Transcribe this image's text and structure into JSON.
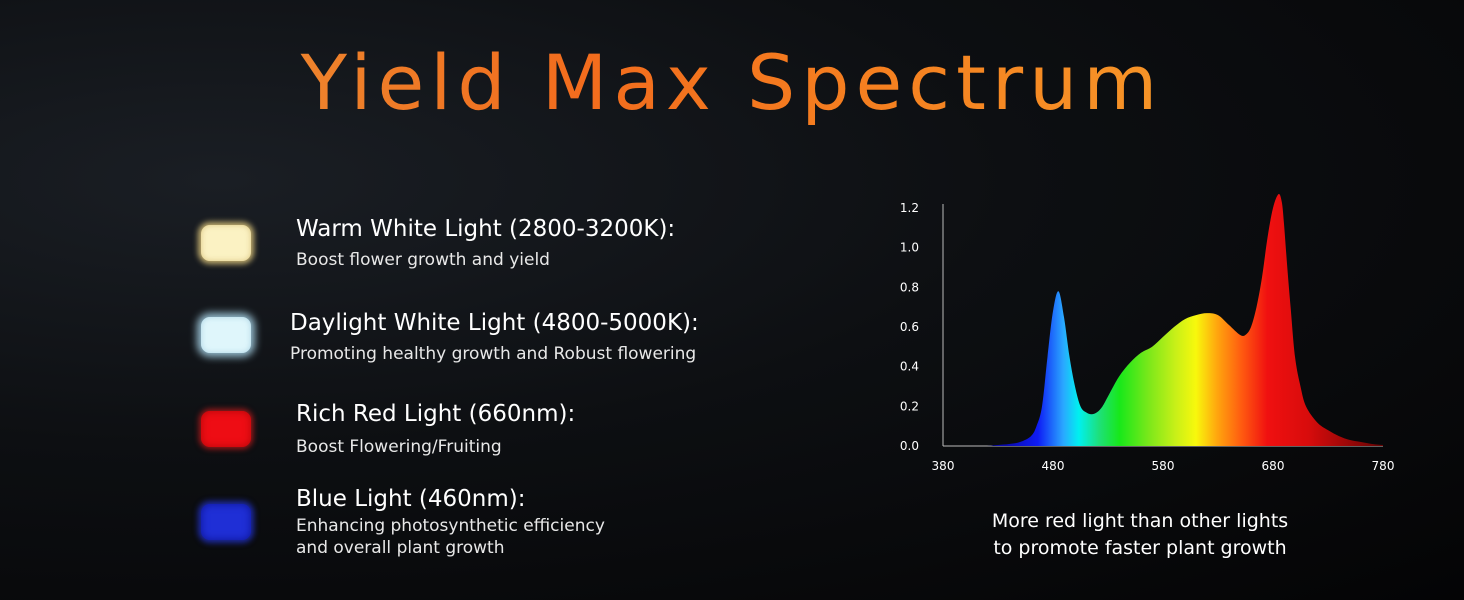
{
  "title": "Yield Max Spectrum",
  "legend": [
    {
      "key": "warm",
      "title": "Warm White Light (2800-3200K):",
      "desc": [
        "Boost flower growth and yield"
      ],
      "color": "#fbf2c3"
    },
    {
      "key": "day",
      "title": "Daylight White Light (4800-5000K):",
      "desc": [
        "Promoting healthy growth and Robust flowering"
      ],
      "color": "#dff6fb"
    },
    {
      "key": "red",
      "title": "Rich Red Light (660nm):",
      "desc": [
        "Boost Flowering/Fruiting"
      ],
      "color": "#ee0d14"
    },
    {
      "key": "blue",
      "title": "Blue Light (460nm):",
      "desc": [
        "Enhancing photosynthetic efficiency",
        "and overall plant growth"
      ],
      "color": "#1f2fd6"
    }
  ],
  "caption": [
    "More red light than other lights",
    "to promote faster plant growth"
  ],
  "chart_data": {
    "type": "area",
    "xlim": [
      380,
      780
    ],
    "ylim": [
      0,
      1.2
    ],
    "x_ticks": [
      "380",
      "480",
      "580",
      "680",
      "780"
    ],
    "y_ticks": [
      "0.0",
      "0.2",
      "0.4",
      "0.6",
      "0.8",
      "1.0",
      "1.2"
    ],
    "grid": false,
    "x": [
      380,
      400,
      420,
      430,
      440,
      450,
      460,
      465,
      470,
      475,
      480,
      485,
      490,
      495,
      500,
      505,
      510,
      515,
      520,
      525,
      530,
      540,
      550,
      560,
      570,
      580,
      590,
      600,
      610,
      620,
      630,
      640,
      650,
      655,
      660,
      665,
      670,
      675,
      680,
      685,
      688,
      690,
      693,
      696,
      700,
      705,
      710,
      720,
      730,
      740,
      750,
      760,
      770,
      780
    ],
    "y": [
      0.0,
      0.0,
      0.0,
      0.005,
      0.01,
      0.02,
      0.05,
      0.1,
      0.2,
      0.45,
      0.68,
      0.78,
      0.65,
      0.45,
      0.3,
      0.2,
      0.17,
      0.16,
      0.17,
      0.2,
      0.25,
      0.35,
      0.42,
      0.47,
      0.5,
      0.55,
      0.6,
      0.64,
      0.66,
      0.67,
      0.66,
      0.61,
      0.56,
      0.56,
      0.6,
      0.7,
      0.85,
      1.05,
      1.2,
      1.27,
      1.23,
      1.12,
      0.9,
      0.7,
      0.45,
      0.3,
      0.2,
      0.12,
      0.08,
      0.05,
      0.03,
      0.02,
      0.01,
      0.005
    ]
  }
}
